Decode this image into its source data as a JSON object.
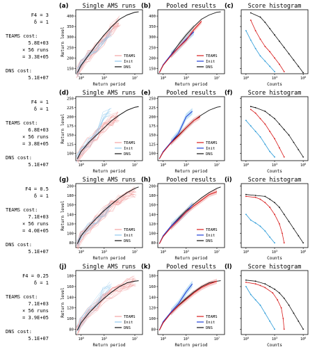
{
  "colors": {
    "teams": "#d81b1b",
    "teams_light": "#f3a3a3",
    "init": "#1f3fd8",
    "init_light": "#8fc8ee",
    "dns": "#111111",
    "hist_init": "#2a9ad8"
  },
  "chart_data": [
    {
      "row_annotation": [
        "F4 = 3",
        "δ = 1",
        "TEAMS cost:",
        "5.8E+03",
        "× 56 runs",
        "= 3.3E+05",
        "DNS cost:",
        "5.1E+07"
      ],
      "ylabel": "Return level",
      "yticks": [
        150,
        200,
        250,
        300,
        350,
        400
      ],
      "ylim": [
        125,
        430
      ],
      "hist_ticks": [
        150,
        200,
        250,
        300,
        350,
        400
      ],
      "panels": [
        {
          "letter": "(a)",
          "title": "Single AMS runs",
          "type": "line",
          "xlabel": "Return period",
          "legend": [
            "TEAMS",
            "Init",
            "DNS"
          ]
        },
        {
          "letter": "(b)",
          "title": "Pooled results",
          "type": "line",
          "xlabel": "Return period",
          "legend": [
            "TEAMS",
            "Init",
            "DNS"
          ]
        },
        {
          "letter": "(c)",
          "title": "Score histogram",
          "type": "line",
          "xlabel": "Counts"
        }
      ],
      "dns": [
        [
          -0.5,
          130
        ],
        [
          0,
          165
        ],
        [
          1,
          215
        ],
        [
          2,
          265
        ],
        [
          3,
          310
        ],
        [
          4,
          350
        ],
        [
          5,
          385
        ],
        [
          6,
          405
        ],
        [
          7,
          418
        ],
        [
          7.5,
          420
        ]
      ],
      "teams": [
        [
          -0.5,
          130
        ],
        [
          0,
          165
        ],
        [
          1,
          210
        ],
        [
          2,
          250
        ],
        [
          3,
          285
        ],
        [
          4,
          335
        ],
        [
          5,
          375
        ]
      ],
      "init": [
        [
          -0.5,
          130
        ],
        [
          0,
          168
        ],
        [
          1,
          215
        ],
        [
          2,
          250
        ],
        [
          3,
          290
        ],
        [
          4,
          325
        ]
      ],
      "hist_dns": [
        [
          6,
          130
        ],
        [
          5.5,
          160
        ],
        [
          5,
          190
        ],
        [
          4.5,
          220
        ],
        [
          4,
          250
        ],
        [
          3.5,
          280
        ],
        [
          3,
          310
        ],
        [
          2.5,
          340
        ],
        [
          2,
          370
        ],
        [
          1.5,
          395
        ],
        [
          0.5,
          415
        ]
      ],
      "hist_teams": [
        [
          4,
          135
        ],
        [
          3.5,
          170
        ],
        [
          3,
          200
        ],
        [
          2.5,
          230
        ],
        [
          2,
          255
        ],
        [
          1.5,
          290
        ],
        [
          1,
          330
        ],
        [
          0.5,
          380
        ]
      ],
      "hist_init": [
        [
          3,
          135
        ],
        [
          2.5,
          160
        ],
        [
          2,
          185
        ],
        [
          1.5,
          210
        ],
        [
          1,
          245
        ],
        [
          0.5,
          285
        ],
        [
          0,
          330
        ]
      ]
    },
    {
      "row_annotation": [
        "F4 = 1",
        "δ = 1",
        "TEAMS cost:",
        "6.8E+03",
        "× 56 runs",
        "= 3.8E+05",
        "DNS cost:",
        "5.1E+07"
      ],
      "ylabel": "Return level",
      "yticks": [
        100,
        125,
        150,
        175,
        200,
        225,
        250
      ],
      "ylim": [
        80,
        255
      ],
      "hist_ticks": [
        100,
        125,
        150,
        175,
        200,
        225,
        250
      ],
      "panels": [
        {
          "letter": "(d)",
          "title": "Single AMS runs",
          "type": "line",
          "xlabel": "Return period",
          "legend": [
            "TEAMS",
            "Init",
            "DNS"
          ]
        },
        {
          "letter": "(e)",
          "title": "Pooled results",
          "type": "line",
          "xlabel": "Return period",
          "legend": [
            "TEAMS",
            "Init",
            "DNS"
          ]
        },
        {
          "letter": "(f)",
          "title": "Score histogram",
          "type": "line",
          "xlabel": "Counts"
        }
      ],
      "dns": [
        [
          -0.5,
          85
        ],
        [
          0,
          105
        ],
        [
          1,
          130
        ],
        [
          2,
          150
        ],
        [
          3,
          170
        ],
        [
          4,
          190
        ],
        [
          5,
          205
        ],
        [
          6,
          218
        ],
        [
          7,
          226
        ],
        [
          7.5,
          228
        ]
      ],
      "teams": [
        [
          -0.5,
          85
        ],
        [
          0,
          103
        ],
        [
          1,
          128
        ],
        [
          2,
          148
        ],
        [
          3,
          170
        ],
        [
          4,
          190
        ],
        [
          4.8,
          200
        ]
      ],
      "init": [
        [
          -0.5,
          85
        ],
        [
          0,
          105
        ],
        [
          1,
          130
        ],
        [
          2,
          155
        ],
        [
          3,
          200
        ],
        [
          3.8,
          215
        ]
      ],
      "hist_dns": [
        [
          6,
          90
        ],
        [
          5.5,
          110
        ],
        [
          5,
          130
        ],
        [
          4.5,
          150
        ],
        [
          4,
          165
        ],
        [
          3.5,
          180
        ],
        [
          3,
          195
        ],
        [
          2.5,
          205
        ],
        [
          2,
          215
        ],
        [
          1,
          225
        ],
        [
          0.5,
          228
        ]
      ],
      "hist_teams": [
        [
          4,
          90
        ],
        [
          3.5,
          115
        ],
        [
          3,
          140
        ],
        [
          2.5,
          160
        ],
        [
          2,
          180
        ],
        [
          1.5,
          195
        ],
        [
          1,
          210
        ],
        [
          0.5,
          220
        ]
      ],
      "hist_init": [
        [
          3,
          90
        ],
        [
          2.5,
          105
        ],
        [
          2,
          125
        ],
        [
          1.5,
          145
        ],
        [
          1,
          160
        ],
        [
          0.5,
          175
        ],
        [
          0,
          190
        ]
      ]
    },
    {
      "row_annotation": [
        "F4 = 0.5",
        "δ = 1",
        "TEAMS cost:",
        "7.1E+03",
        "× 56 runs",
        "= 4.0E+05",
        "DNS cost:",
        "5.1E+07"
      ],
      "ylabel": "Return level",
      "yticks": [
        80,
        100,
        120,
        140,
        160,
        180,
        200
      ],
      "ylim": [
        70,
        205
      ],
      "hist_ticks": [
        80,
        100,
        120,
        140,
        160,
        180,
        200
      ],
      "panels": [
        {
          "letter": "(g)",
          "title": "Single AMS runs",
          "type": "line",
          "xlabel": "Return period",
          "legend": [
            "TEAMS",
            "Init",
            "DNS"
          ]
        },
        {
          "letter": "(h)",
          "title": "Pooled results",
          "type": "line",
          "xlabel": "Return period",
          "legend": [
            "TEAMS",
            "Init",
            "DNS"
          ]
        },
        {
          "letter": "(i)",
          "title": "Score histogram",
          "type": "line",
          "xlabel": "Counts"
        }
      ],
      "dns": [
        [
          -0.5,
          78
        ],
        [
          0,
          95
        ],
        [
          1,
          115
        ],
        [
          2,
          132
        ],
        [
          3,
          148
        ],
        [
          4,
          162
        ],
        [
          5,
          175
        ],
        [
          6,
          186
        ],
        [
          7,
          195
        ],
        [
          7.5,
          198
        ]
      ],
      "teams": [
        [
          -0.5,
          78
        ],
        [
          0,
          93
        ],
        [
          1,
          112
        ],
        [
          2,
          128
        ],
        [
          3,
          145
        ],
        [
          4,
          158
        ],
        [
          5,
          170
        ],
        [
          6,
          182
        ],
        [
          7,
          188
        ]
      ],
      "init": [
        [
          -0.5,
          78
        ],
        [
          0,
          95
        ],
        [
          1,
          115
        ],
        [
          2,
          130
        ],
        [
          3,
          145
        ],
        [
          3.8,
          160
        ]
      ],
      "hist_dns": [
        [
          6,
          80
        ],
        [
          5.5,
          95
        ],
        [
          5,
          110
        ],
        [
          4.5,
          125
        ],
        [
          4,
          140
        ],
        [
          3.5,
          155
        ],
        [
          3,
          165
        ],
        [
          2.5,
          172
        ],
        [
          2,
          178
        ],
        [
          1,
          180
        ],
        [
          0,
          182
        ]
      ],
      "hist_teams": [
        [
          4,
          80
        ],
        [
          3.8,
          100
        ],
        [
          3.5,
          120
        ],
        [
          3,
          140
        ],
        [
          2.5,
          155
        ],
        [
          2,
          165
        ],
        [
          1.5,
          172
        ],
        [
          1,
          176
        ],
        [
          0,
          178
        ]
      ],
      "hist_init": [
        [
          3,
          80
        ],
        [
          2.5,
          92
        ],
        [
          2,
          105
        ],
        [
          1.5,
          115
        ],
        [
          1,
          122
        ],
        [
          0.5,
          128
        ],
        [
          0,
          140
        ]
      ]
    },
    {
      "row_annotation": [
        "F4 = 0.25",
        "δ = 1",
        "TEAMS cost:",
        "7.1E+03",
        "× 56 runs",
        "= 3.9E+05",
        "DNS cost:",
        "5.1E+07"
      ],
      "ylabel": "Return level",
      "yticks": [
        80,
        100,
        120,
        140,
        160,
        180
      ],
      "ylim": [
        70,
        190
      ],
      "hist_ticks": [
        80,
        100,
        120,
        140,
        160,
        180
      ],
      "panels": [
        {
          "letter": "(j)",
          "title": "Single AMS runs",
          "type": "line",
          "xlabel": "Return period",
          "legend": [
            "TEAMS",
            "Init",
            "DNS"
          ]
        },
        {
          "letter": "(k)",
          "title": "Pooled results",
          "type": "line",
          "xlabel": "Return period",
          "legend": [
            "TEAMS",
            "Init",
            "DNS"
          ]
        },
        {
          "letter": "(l)",
          "title": "Score histogram",
          "type": "line",
          "xlabel": "Counts"
        }
      ],
      "dns": [
        [
          -0.5,
          78
        ],
        [
          0,
          92
        ],
        [
          1,
          110
        ],
        [
          2,
          125
        ],
        [
          3,
          138
        ],
        [
          4,
          150
        ],
        [
          5,
          160
        ],
        [
          6,
          167
        ],
        [
          7,
          170
        ],
        [
          7.5,
          171
        ]
      ],
      "teams": [
        [
          -0.5,
          78
        ],
        [
          0,
          92
        ],
        [
          1,
          110
        ],
        [
          2,
          124
        ],
        [
          3,
          136
        ],
        [
          4,
          148
        ],
        [
          5,
          158
        ],
        [
          6,
          165
        ],
        [
          7,
          170
        ]
      ],
      "init": [
        [
          -0.5,
          78
        ],
        [
          0,
          94
        ],
        [
          1,
          112
        ],
        [
          2,
          128
        ],
        [
          3,
          150
        ],
        [
          3.8,
          165
        ]
      ],
      "hist_dns": [
        [
          6,
          80
        ],
        [
          5.5,
          95
        ],
        [
          5,
          110
        ],
        [
          4.5,
          125
        ],
        [
          4,
          138
        ],
        [
          3.5,
          148
        ],
        [
          3,
          155
        ],
        [
          2.5,
          160
        ],
        [
          2,
          165
        ],
        [
          1,
          170
        ],
        [
          0,
          172
        ]
      ],
      "hist_teams": [
        [
          4,
          80
        ],
        [
          3.9,
          100
        ],
        [
          3.7,
          120
        ],
        [
          3.3,
          135
        ],
        [
          2.8,
          148
        ],
        [
          2,
          158
        ],
        [
          1.5,
          162
        ],
        [
          1,
          165
        ],
        [
          0,
          168
        ]
      ],
      "hist_init": [
        [
          3,
          80
        ],
        [
          2.5,
          95
        ],
        [
          2,
          110
        ],
        [
          1.5,
          125
        ],
        [
          1,
          135
        ],
        [
          0.5,
          145
        ],
        [
          0,
          160
        ]
      ]
    }
  ]
}
